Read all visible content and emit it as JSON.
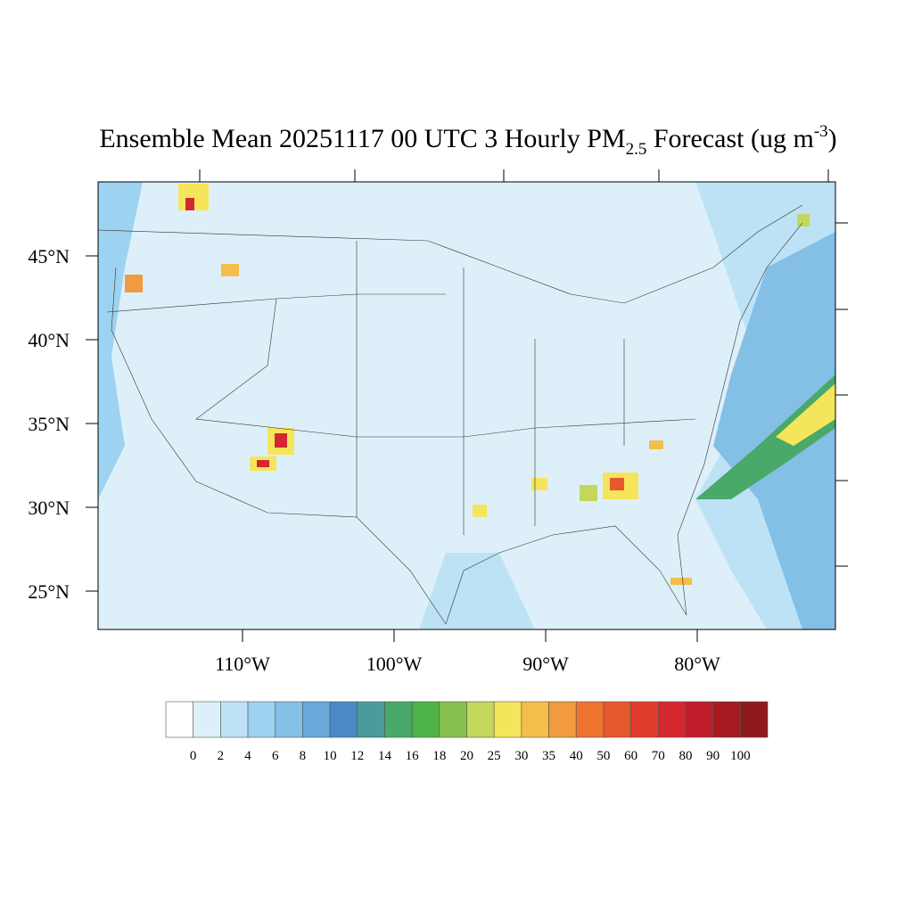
{
  "title": {
    "main": "Ensemble Mean 20251117 00 UTC 3 Hourly PM",
    "sub": "2.5",
    "units": " Forecast (ug m",
    "sup": "-3",
    "close": ")"
  },
  "lat_labels": [
    "45°N",
    "40°N",
    "35°N",
    "30°N",
    "25°N"
  ],
  "lon_labels": [
    "110°W",
    "100°W",
    "90°W",
    "80°W"
  ],
  "colorbar": {
    "ticks": [
      0,
      2,
      4,
      6,
      8,
      10,
      12,
      14,
      16,
      18,
      20,
      25,
      30,
      35,
      40,
      50,
      60,
      70,
      80,
      90,
      100
    ],
    "colors": [
      "#ffffff",
      "#ddf0fa",
      "#bde2f5",
      "#9dd3f0",
      "#84bfe6",
      "#69a8d9",
      "#4a8ac6",
      "#4a9c9c",
      "#49a96b",
      "#4db346",
      "#86c04c",
      "#c3d85a",
      "#f5e55a",
      "#f5be4a",
      "#f29a3e",
      "#ef7430",
      "#e6582d",
      "#e03b2d",
      "#d42830",
      "#bf1d2a",
      "#a81a22",
      "#8f1a1c"
    ]
  }
}
